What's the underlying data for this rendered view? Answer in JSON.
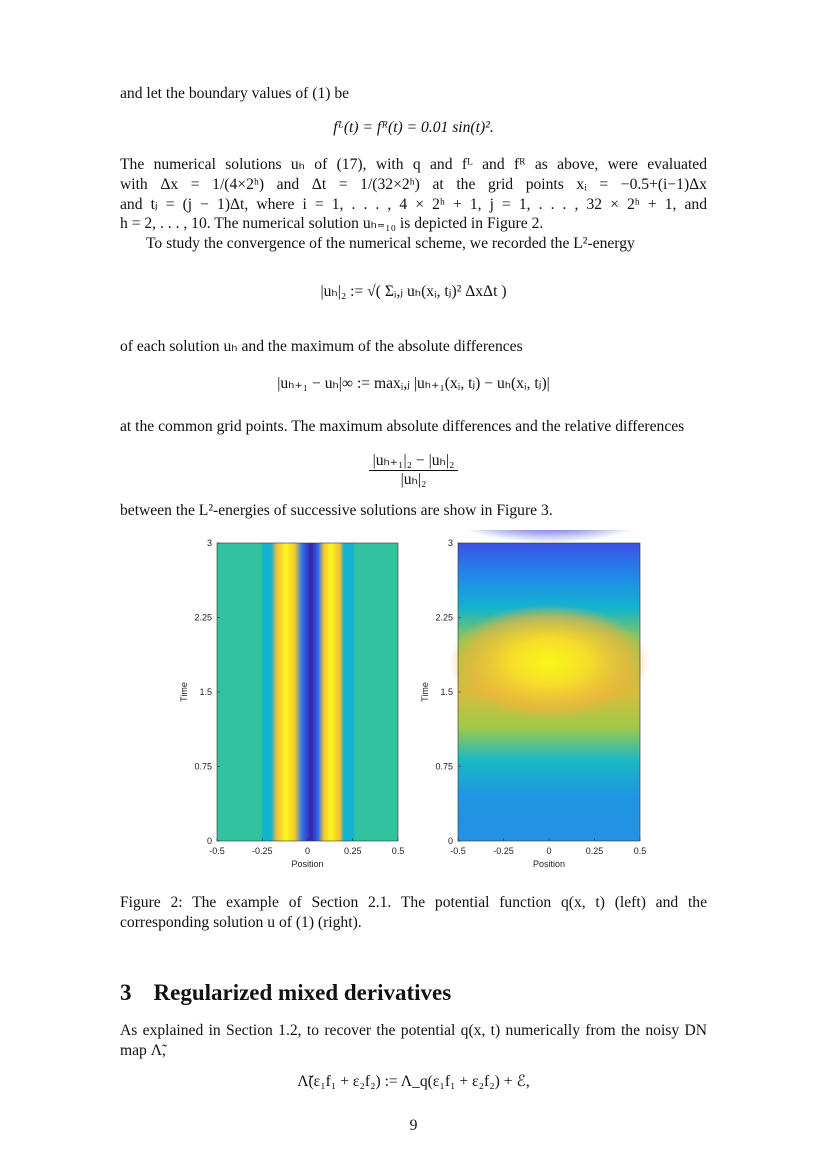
{
  "p1": "and let the boundary values of (1) be",
  "eq1": "fᴸ(t) = fᴿ(t) = 0.01 sin(t)².",
  "p2_l1": "The numerical solutions uₕ of (17), with q and fᴸ and fᴿ as above, were evaluated",
  "p2_l2": "with Δx = 1/(4×2ʰ) and Δt = 1/(32×2ʰ) at the grid points xᵢ = −0.5+(i−1)Δx",
  "p2_l3": "and tⱼ = (j − 1)Δt, where i = 1, . . . , 4 × 2ʰ + 1, j = 1, . . . , 32 × 2ʰ + 1, and",
  "p2_l4": "h = 2, . . . , 10. The numerical solution uₕ₌₁₀ is depicted in Figure 2.",
  "p3": "To study the convergence of the numerical scheme, we recorded the L²-energy",
  "eq2": "|uₕ|₂ := √( Σᵢ,ⱼ uₕ(xᵢ, tⱼ)² ΔxΔt )",
  "p4": "of each solution uₕ and the maximum of the absolute differences",
  "eq3": "|uₕ₊₁ − uₕ|∞ := maxᵢ,ⱼ |uₕ₊₁(xᵢ, tⱼ) − uₕ(xᵢ, tⱼ)|",
  "p5": "at the common grid points. The maximum absolute differences and the relative differences",
  "eq4_num": "|uₕ₊₁|₂ − |uₕ|₂",
  "eq4_den": "|uₕ|₂",
  "p6": "between the L²-energies of successive solutions are show in Figure 3.",
  "figure": {
    "plots": [
      {
        "xlabel": "Position",
        "ylabel": "Time",
        "xticks": [
          "-0.5",
          "-0.25",
          "0",
          "0.25",
          "0.5"
        ],
        "yticks": [
          "0",
          "0.75",
          "1.5",
          "2.25",
          "3"
        ],
        "type": "heatmap",
        "colormap": "parula"
      },
      {
        "xlabel": "Position",
        "ylabel": "Time",
        "xticks": [
          "-0.5",
          "-0.25",
          "0",
          "0.25",
          "0.5"
        ],
        "yticks": [
          "0",
          "0.75",
          "1.5",
          "2.25",
          "3"
        ],
        "type": "heatmap",
        "colormap": "parula"
      }
    ],
    "caption_l1": "Figure 2: The example of Section 2.1. The potential function q(x, t) (left) and the",
    "caption_l2": "corresponding solution u of (1) (right)."
  },
  "section": {
    "number": "3",
    "title": "Regularized mixed derivatives"
  },
  "p7": "As explained in Section 1.2, to recover the potential q(x, t) numerically from the noisy DN map Λ̃,",
  "eq5": "Λ̃(ε₁f₁ + ε₂f₂) := Λ_q(ε₁f₁ + ε₂f₂) + ℰ,",
  "page_number": "9"
}
